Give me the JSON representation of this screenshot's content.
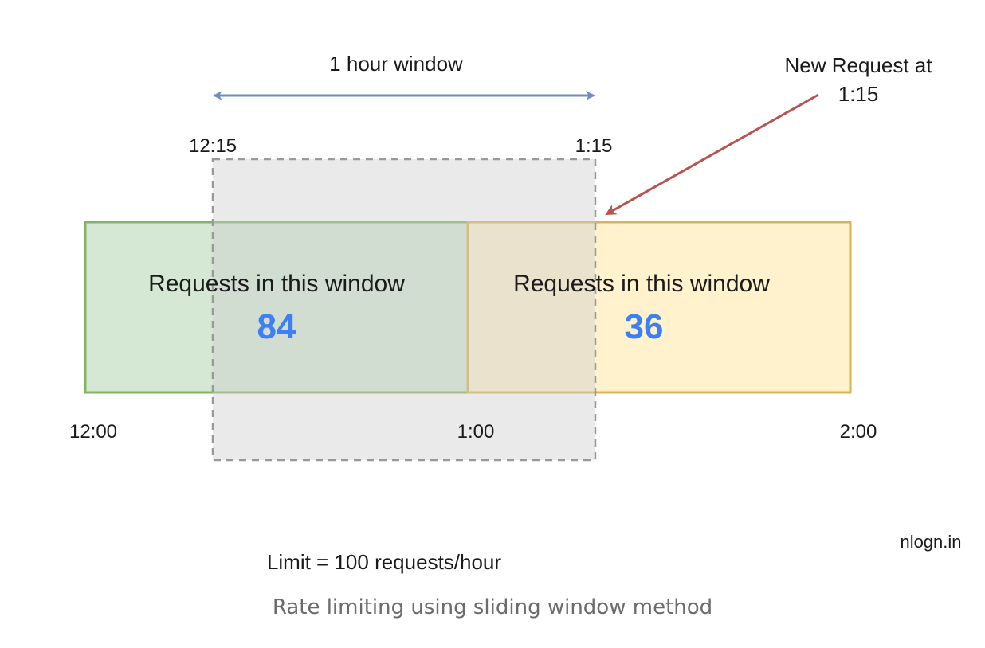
{
  "window_label": "1 hour window",
  "new_request_label_line1": "New Request at",
  "new_request_label_line2": "1:15",
  "window_start_label": "12:15",
  "window_end_label": "1:15",
  "left_box": {
    "label": "Requests in this window",
    "count": "84"
  },
  "right_box": {
    "label": "Requests in this window",
    "count": "36"
  },
  "timeline_labels": {
    "start": "12:00",
    "middle": "1:00",
    "end": "2:00"
  },
  "limit_text": "Limit = 100 requests/hour",
  "watermark": "nlogn.in",
  "caption": "Rate limiting using sliding window method",
  "colors": {
    "left_fill": "#d5e8d4",
    "left_stroke": "#82b366",
    "right_fill": "#fff2cc",
    "right_stroke": "#d6b656",
    "window_fill": "#e6e6e6",
    "window_stroke": "#999999",
    "window_arrow": "#6c8ebf",
    "request_arrow": "#b85450",
    "count_text": "#3d7ff5"
  }
}
